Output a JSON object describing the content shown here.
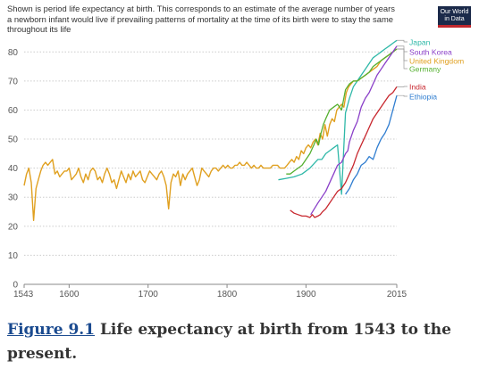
{
  "header": {
    "subtitle": "Shown is period life expectancy at birth. This corresponds to an estimate of the average number of years a newborn infant would live if prevailing patterns of mortality at the time of its birth were to stay the same throughout its life",
    "logo_line1": "Our World",
    "logo_line2": "in Data"
  },
  "caption": {
    "figure_ref": "Figure 9.1",
    "text": " Life expectancy at birth from 1543 to the present."
  },
  "chart_data": {
    "type": "line",
    "title": "",
    "xlabel": "",
    "ylabel": "",
    "xlim": [
      1543,
      2015
    ],
    "ylim": [
      0,
      85
    ],
    "x_ticks": [
      1543,
      1600,
      1700,
      1800,
      1900,
      2015
    ],
    "y_ticks": [
      0,
      10,
      20,
      30,
      40,
      50,
      60,
      70,
      80
    ],
    "grid": "horizontal dotted",
    "legend": "right, labels at line ends",
    "series": [
      {
        "name": "United Kingdom",
        "color": "#e0a020",
        "x": [
          1543,
          1546,
          1549,
          1552,
          1555,
          1558,
          1561,
          1564,
          1567,
          1570,
          1573,
          1576,
          1579,
          1582,
          1585,
          1588,
          1591,
          1594,
          1597,
          1600,
          1603,
          1606,
          1609,
          1612,
          1615,
          1618,
          1621,
          1624,
          1627,
          1630,
          1633,
          1636,
          1639,
          1642,
          1645,
          1648,
          1651,
          1654,
          1657,
          1660,
          1663,
          1666,
          1669,
          1672,
          1675,
          1678,
          1681,
          1684,
          1687,
          1690,
          1693,
          1696,
          1699,
          1702,
          1705,
          1708,
          1711,
          1714,
          1717,
          1720,
          1723,
          1726,
          1729,
          1732,
          1735,
          1738,
          1741,
          1744,
          1747,
          1750,
          1753,
          1756,
          1759,
          1762,
          1765,
          1768,
          1771,
          1774,
          1777,
          1780,
          1783,
          1786,
          1789,
          1792,
          1795,
          1798,
          1801,
          1804,
          1807,
          1810,
          1813,
          1816,
          1819,
          1822,
          1825,
          1828,
          1831,
          1834,
          1837,
          1840,
          1843,
          1846,
          1849,
          1852,
          1855,
          1858,
          1861,
          1864,
          1867,
          1870,
          1873,
          1876,
          1879,
          1882,
          1885,
          1888,
          1891,
          1894,
          1897,
          1900,
          1903,
          1906,
          1909,
          1912,
          1915,
          1918,
          1921,
          1924,
          1927,
          1930,
          1933,
          1936,
          1939,
          1942,
          1945,
          1948,
          1951,
          1954,
          1957,
          1960,
          1965,
          1970,
          1975,
          1980,
          1985,
          1990,
          1995,
          2000,
          2005,
          2010,
          2015
        ],
        "y": [
          34,
          38,
          40,
          35,
          22,
          33,
          36,
          39,
          41,
          42,
          41,
          42,
          43,
          38,
          39,
          37,
          38,
          39,
          39,
          40,
          36,
          37,
          38,
          40,
          37,
          35,
          38,
          36,
          39,
          40,
          39,
          36,
          37,
          35,
          38,
          40,
          38,
          35,
          36,
          33,
          36,
          39,
          37,
          35,
          38,
          36,
          39,
          37,
          38,
          39,
          36,
          35,
          37,
          39,
          38,
          37,
          36,
          38,
          39,
          37,
          34,
          26,
          35,
          38,
          37,
          39,
          34,
          38,
          36,
          38,
          39,
          40,
          37,
          34,
          36,
          40,
          39,
          38,
          37,
          39,
          40,
          40,
          39,
          40,
          41,
          40,
          41,
          40,
          40,
          41,
          41,
          42,
          41,
          41,
          42,
          41,
          40,
          41,
          40,
          40,
          41,
          40,
          40,
          40,
          40,
          41,
          41,
          41,
          40,
          40,
          40,
          41,
          42,
          43,
          42,
          44,
          43,
          46,
          45,
          47,
          48,
          47,
          49,
          50,
          48,
          52,
          50,
          55,
          51,
          55,
          57,
          56,
          60,
          61,
          62,
          61,
          66,
          68,
          69,
          70,
          70,
          71,
          72,
          73,
          74,
          75,
          77,
          78,
          79,
          80,
          81
        ]
      },
      {
        "name": "Japan",
        "color": "#2fb8a8",
        "x": [
          1865,
          1875,
          1885,
          1895,
          1905,
          1915,
          1920,
          1925,
          1930,
          1935,
          1940,
          1945,
          1950,
          1955,
          1960,
          1965,
          1970,
          1975,
          1980,
          1985,
          1990,
          1995,
          2000,
          2005,
          2010,
          2015
        ],
        "y": [
          36,
          36.5,
          37,
          38,
          40,
          43,
          43,
          45,
          46,
          47,
          48,
          31,
          59,
          64,
          68,
          70,
          72,
          74,
          76,
          78,
          79,
          80,
          81,
          82,
          83,
          84
        ]
      },
      {
        "name": "Germany",
        "color": "#55b030",
        "x": [
          1875,
          1880,
          1885,
          1890,
          1895,
          1900,
          1905,
          1910,
          1913,
          1916,
          1919,
          1922,
          1925,
          1930,
          1935,
          1940,
          1945,
          1950,
          1955,
          1960,
          1965,
          1970,
          1975,
          1980,
          1985,
          1990,
          1995,
          2000,
          2005,
          2010,
          2015
        ],
        "y": [
          38,
          38,
          39,
          40,
          41,
          43,
          45,
          48,
          50,
          48,
          52,
          55,
          57,
          60,
          61,
          62,
          60,
          67,
          69,
          70,
          70,
          71,
          72,
          73,
          75,
          76,
          77,
          78,
          79,
          80,
          81
        ]
      },
      {
        "name": "South Korea",
        "color": "#8a3fc8",
        "x": [
          1906,
          1915,
          1925,
          1935,
          1940,
          1945,
          1950,
          1953,
          1955,
          1960,
          1965,
          1970,
          1975,
          1980,
          1985,
          1990,
          1995,
          2000,
          2005,
          2010,
          2015
        ],
        "y": [
          24,
          28,
          32,
          38,
          41,
          42,
          45,
          46,
          49,
          53,
          56,
          61,
          64,
          66,
          69,
          72,
          74,
          76,
          78,
          80,
          82
        ]
      },
      {
        "name": "India",
        "color": "#c8282f",
        "x": [
          1880,
          1885,
          1890,
          1895,
          1900,
          1905,
          1908,
          1911,
          1915,
          1918,
          1921,
          1925,
          1930,
          1935,
          1940,
          1945,
          1950,
          1955,
          1960,
          1965,
          1970,
          1975,
          1980,
          1985,
          1990,
          1995,
          2000,
          2005,
          2010,
          2015
        ],
        "y": [
          25.5,
          24.5,
          24,
          23.5,
          23.5,
          23,
          24,
          23,
          23.5,
          24,
          25,
          26,
          28,
          30,
          32,
          33,
          35,
          38,
          41,
          45,
          48,
          51,
          54,
          57,
          59,
          61,
          63,
          65,
          66,
          68
        ]
      },
      {
        "name": "Ethiopia",
        "color": "#2f7dd0",
        "x": [
          1950,
          1955,
          1960,
          1965,
          1970,
          1975,
          1980,
          1985,
          1990,
          1995,
          2000,
          2005,
          2010,
          2015
        ],
        "y": [
          31,
          33,
          36,
          38,
          41,
          42,
          44,
          43,
          47,
          50,
          52,
          55,
          60,
          65
        ]
      }
    ]
  }
}
